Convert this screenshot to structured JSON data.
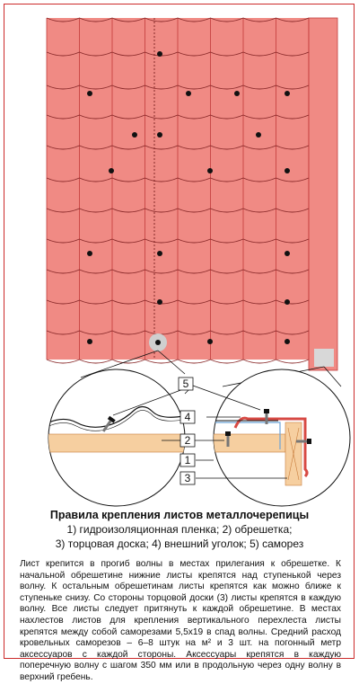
{
  "title": "Правила крепления листов металлочерепицы",
  "legend": {
    "line1": "1) гидроизоляционная пленка; 2) обрешетка;",
    "line2": "3) торцовая доска; 4) внешний уголок; 5) саморез"
  },
  "description": "Лист крепится в прогиб волны в местах прилегания к обрешетке. К начальной обрешетине нижние листы крепятся над ступенькой через волну. К остальным обрешетинам листы крепятся как можно ближе к ступеньке снизу. Со стороны торцовой доски (3) листы крепятся в каждую волну. Все листы следует притянуть к каждой обрешетине. В местах нахлестов листов для крепления вертикального перехлеста листы крепятся между собой саморезами 5,5x19 в спад волны. Средний расход кровельных саморезов – 6–8 штук на м² и 3 шт. на погонный метр аксессуаров с каждой стороны. Аксессуары крепятся в каждую поперечную волну с шагом 350 мм или в продольную через одну волну в верхний гребень.",
  "callouts": [
    "1",
    "2",
    "3",
    "4",
    "5"
  ],
  "colors": {
    "roof": "#f08a84",
    "line": "#c23a3a",
    "batten": "#f6cfa0",
    "accent": "#e0463c",
    "screw": "#111111"
  }
}
